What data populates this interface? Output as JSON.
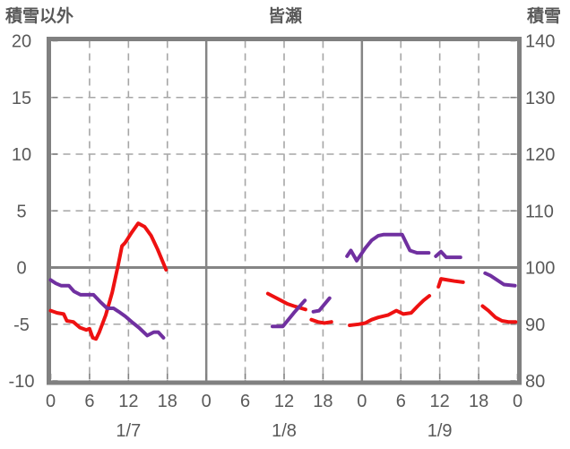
{
  "chart_data": {
    "type": "line",
    "title": "皆瀬",
    "left_axis": {
      "label": "積雪以外",
      "min": -10,
      "max": 20,
      "ticks": [
        20,
        15,
        10,
        5,
        0,
        -5,
        -10
      ]
    },
    "right_axis": {
      "label": "積雪",
      "min": 80,
      "max": 140,
      "ticks": [
        140,
        130,
        120,
        110,
        100,
        90,
        80
      ]
    },
    "x_axis": {
      "total_hours": 72,
      "tick_hours": [
        0,
        6,
        12,
        18,
        24,
        30,
        36,
        42,
        48,
        54,
        60,
        66,
        72
      ],
      "tick_labels": [
        "0",
        "6",
        "12",
        "18",
        "0",
        "6",
        "12",
        "18",
        "0",
        "6",
        "12",
        "18",
        "0"
      ],
      "day_labels": [
        {
          "label": "1/7",
          "center_hour": 12
        },
        {
          "label": "1/8",
          "center_hour": 36
        },
        {
          "label": "1/9",
          "center_hour": 60
        }
      ]
    },
    "grid": {
      "h_dashed_values": [
        15,
        10,
        5,
        -5
      ],
      "h_solid_values": [
        0
      ],
      "v_dashed_hours": [
        6,
        12,
        18,
        30,
        36,
        42,
        54,
        60,
        66
      ],
      "v_solid_hours": [
        24,
        48
      ]
    },
    "colors": {
      "red_series": "#ee1111",
      "purple_series": "#7030a0",
      "border_gray": "#808080",
      "grid_gray": "#a6a6a6",
      "zero_gray": "#858585",
      "text_gray": "#595959"
    },
    "legend": "none",
    "series": [
      {
        "name": "red-series",
        "color_key": "red_series",
        "axis": "left",
        "segments": [
          [
            [
              0,
              -3.8
            ],
            [
              1,
              -4.0
            ],
            [
              2,
              -4.1
            ],
            [
              2.5,
              -4.7
            ],
            [
              3.5,
              -4.8
            ],
            [
              4.5,
              -5.3
            ],
            [
              5.5,
              -5.5
            ],
            [
              6,
              -5.4
            ],
            [
              6.5,
              -6.2
            ],
            [
              7,
              -6.3
            ],
            [
              7.5,
              -5.7
            ],
            [
              8.5,
              -4.2
            ],
            [
              9.5,
              -2.2
            ],
            [
              10.4,
              0.2
            ],
            [
              11,
              1.9
            ],
            [
              11.5,
              2.2
            ],
            [
              12.5,
              3.1
            ],
            [
              13.5,
              3.9
            ],
            [
              14.5,
              3.6
            ],
            [
              15.5,
              2.8
            ],
            [
              16.5,
              1.6
            ],
            [
              17.8,
              -0.2
            ]
          ],
          [
            [
              33.5,
              -2.3
            ],
            [
              34.5,
              -2.6
            ],
            [
              35.5,
              -2.9
            ],
            [
              36.5,
              -3.2
            ],
            [
              37.5,
              -3.4
            ],
            [
              39.3,
              -3.7
            ]
          ],
          [
            [
              40.2,
              -4.6
            ],
            [
              41.2,
              -4.8
            ],
            [
              42.2,
              -4.9
            ],
            [
              43.3,
              -4.8
            ]
          ],
          [
            [
              46.1,
              -5.1
            ],
            [
              47.5,
              -5.0
            ],
            [
              48.5,
              -4.9
            ],
            [
              49.5,
              -4.6
            ],
            [
              50.5,
              -4.4
            ],
            [
              52,
              -4.2
            ],
            [
              53.3,
              -3.8
            ],
            [
              54.4,
              -4.1
            ],
            [
              55.6,
              -4.0
            ],
            [
              56.6,
              -3.4
            ],
            [
              57.5,
              -2.9
            ],
            [
              58.4,
              -2.5
            ]
          ],
          [
            [
              59.8,
              -1.7
            ],
            [
              60.2,
              -1.0
            ],
            [
              61.2,
              -1.1
            ],
            [
              62.3,
              -1.2
            ],
            [
              63.6,
              -1.3
            ]
          ],
          [
            [
              66.6,
              -3.4
            ],
            [
              67.5,
              -3.8
            ],
            [
              68.6,
              -4.4
            ],
            [
              69.6,
              -4.7
            ],
            [
              70.6,
              -4.8
            ],
            [
              71.7,
              -4.8
            ]
          ]
        ]
      },
      {
        "name": "purple-series",
        "color_key": "purple_series",
        "axis": "left",
        "segments": [
          [
            [
              0,
              -1.1
            ],
            [
              0.8,
              -1.4
            ],
            [
              1.6,
              -1.6
            ],
            [
              2.8,
              -1.6
            ],
            [
              3.6,
              -2.1
            ],
            [
              4.6,
              -2.4
            ],
            [
              6.6,
              -2.4
            ],
            [
              7.6,
              -3.0
            ],
            [
              8.7,
              -3.6
            ],
            [
              9.7,
              -3.6
            ],
            [
              10.5,
              -3.9
            ],
            [
              11.5,
              -4.3
            ],
            [
              12.5,
              -4.8
            ],
            [
              13.6,
              -5.3
            ],
            [
              14.9,
              -6.0
            ],
            [
              15.9,
              -5.7
            ],
            [
              16.6,
              -5.7
            ],
            [
              17.4,
              -6.2
            ]
          ],
          [
            [
              34.2,
              -5.2
            ],
            [
              35.8,
              -5.2
            ],
            [
              37.5,
              -4.0
            ],
            [
              39.2,
              -2.9
            ]
          ],
          [
            [
              40.5,
              -3.9
            ],
            [
              41.4,
              -3.8
            ],
            [
              43.0,
              -2.7
            ]
          ],
          [
            [
              45.7,
              1.0
            ],
            [
              46.3,
              1.5
            ],
            [
              47.2,
              0.6
            ],
            [
              48.5,
              1.7
            ],
            [
              49.5,
              2.4
            ],
            [
              50.5,
              2.8
            ],
            [
              51.3,
              2.9
            ],
            [
              54.2,
              2.9
            ],
            [
              55.4,
              1.5
            ],
            [
              56.5,
              1.3
            ],
            [
              58.3,
              1.3
            ]
          ],
          [
            [
              59.4,
              1.0
            ],
            [
              60.2,
              1.4
            ],
            [
              61.0,
              0.9
            ],
            [
              63.2,
              0.9
            ]
          ],
          [
            [
              67.0,
              -0.5
            ],
            [
              67.8,
              -0.7
            ],
            [
              69.9,
              -1.5
            ],
            [
              71.6,
              -1.6
            ]
          ]
        ]
      }
    ]
  }
}
